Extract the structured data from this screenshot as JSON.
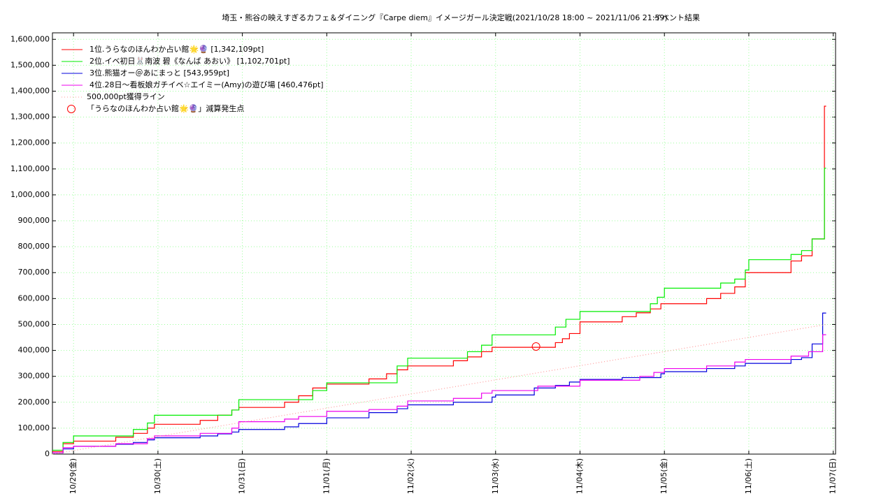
{
  "chart_data": {
    "type": "line",
    "title": "埼玉・熊谷の映えすぎるカフェ＆ダイニング『Carpe diem』イメージガール決定戦(2021/10/28 18:00 ~ 2021/11/06 21:59)",
    "subtitle": "イベント結果",
    "xlim": [
      "2021-10-28T18:00",
      "2021-11-07T00:40"
    ],
    "xticks": [
      {
        "value": "2021-10-29T00:00",
        "label": "10/29(金)"
      },
      {
        "value": "2021-10-30T00:00",
        "label": "10/30(土)"
      },
      {
        "value": "2021-10-31T00:00",
        "label": "10/31(日)"
      },
      {
        "value": "2021-11-01T00:00",
        "label": "11/01(月)"
      },
      {
        "value": "2021-11-02T00:00",
        "label": "11/02(火)"
      },
      {
        "value": "2021-11-03T00:00",
        "label": "11/03(水)"
      },
      {
        "value": "2021-11-04T00:00",
        "label": "11/04(木)"
      },
      {
        "value": "2021-11-05T00:00",
        "label": "11/05(金)"
      },
      {
        "value": "2021-11-06T00:00",
        "label": "11/06(土)"
      },
      {
        "value": "2021-11-07T00:00",
        "label": "11/07(日)"
      }
    ],
    "ylim": [
      0,
      1625000
    ],
    "yticks": [
      0,
      {
        "value": 100000,
        "label": "100,000"
      },
      {
        "value": 200000,
        "label": "200,000"
      },
      {
        "value": 300000,
        "label": "300,000"
      },
      {
        "value": 400000,
        "label": "400,000"
      },
      {
        "value": 500000,
        "label": "500,000"
      },
      {
        "value": 600000,
        "label": "600,000"
      },
      {
        "value": 700000,
        "label": "700,000"
      },
      {
        "value": 800000,
        "label": "800,000"
      },
      {
        "value": 900000,
        "label": "900,000"
      },
      {
        "value": 1000000,
        "label": "1,000,000"
      },
      {
        "value": 1100000,
        "label": "1,100,000"
      },
      {
        "value": 1200000,
        "label": "1,200,000"
      },
      {
        "value": 1300000,
        "label": "1,300,000"
      },
      {
        "value": 1400000,
        "label": "1,400,000"
      },
      {
        "value": 1500000,
        "label": "1,500,000"
      },
      {
        "value": 1600000,
        "label": "1,600,000"
      }
    ],
    "grid": true,
    "legend": "upper left",
    "series": [
      {
        "name": "1位.うらなのほんわか占い館🌟🔮 [1,342,109pt]",
        "color": "#ff0000",
        "drawstyle": "steps-post",
        "x": [
          "2021-10-28T18:00",
          "2021-10-28T21:00",
          "2021-10-29T00:00",
          "2021-10-29T12:00",
          "2021-10-29T17:00",
          "2021-10-29T21:00",
          "2021-10-29T23:00",
          "2021-10-30T12:00",
          "2021-10-30T17:00",
          "2021-10-30T21:00",
          "2021-10-30T23:00",
          "2021-10-31T12:00",
          "2021-10-31T16:00",
          "2021-10-31T20:00",
          "2021-11-01T00:00",
          "2021-11-01T12:00",
          "2021-11-01T17:00",
          "2021-11-01T20:00",
          "2021-11-01T23:00",
          "2021-11-02T12:00",
          "2021-11-02T16:00",
          "2021-11-02T20:00",
          "2021-11-02T23:00",
          "2021-11-03T17:00",
          "2021-11-03T19:00",
          "2021-11-03T21:00",
          "2021-11-04T00:00",
          "2021-11-04T12:00",
          "2021-11-04T16:00",
          "2021-11-04T20:00",
          "2021-11-04T23:00",
          "2021-11-05T12:00",
          "2021-11-05T16:00",
          "2021-11-05T20:00",
          "2021-11-05T23:00",
          "2021-11-06T12:00",
          "2021-11-06T15:00",
          "2021-11-06T18:00",
          "2021-11-06T21:30",
          "2021-11-06T21:59"
        ],
        "values": [
          10000,
          40000,
          50000,
          65000,
          80000,
          100000,
          115000,
          130000,
          150000,
          170000,
          180000,
          200000,
          225000,
          255000,
          270000,
          290000,
          310000,
          325000,
          340000,
          360000,
          375000,
          395000,
          412000,
          430000,
          445000,
          465000,
          510000,
          530000,
          545000,
          560000,
          580000,
          600000,
          620000,
          645000,
          700000,
          745000,
          765000,
          830000,
          1342109,
          1342109
        ]
      },
      {
        "name": "2位.イベ初日🐰南波 碧《なんば あおい》 [1,102,701pt]",
        "color": "#00ee00",
        "drawstyle": "steps-post",
        "x": [
          "2021-10-28T18:00",
          "2021-10-28T21:00",
          "2021-10-29T00:00",
          "2021-10-29T17:00",
          "2021-10-29T21:00",
          "2021-10-29T23:00",
          "2021-10-30T21:00",
          "2021-10-30T23:00",
          "2021-10-31T20:00",
          "2021-11-01T00:00",
          "2021-11-01T20:00",
          "2021-11-01T23:00",
          "2021-11-02T16:00",
          "2021-11-02T20:00",
          "2021-11-02T23:00",
          "2021-11-03T17:00",
          "2021-11-03T20:00",
          "2021-11-04T00:00",
          "2021-11-04T20:00",
          "2021-11-04T22:00",
          "2021-11-05T00:00",
          "2021-11-05T16:00",
          "2021-11-05T20:00",
          "2021-11-05T23:00",
          "2021-11-06T00:00",
          "2021-11-06T12:00",
          "2021-11-06T15:00",
          "2021-11-06T18:00",
          "2021-11-06T21:30",
          "2021-11-06T21:59"
        ],
        "values": [
          15000,
          45000,
          70000,
          95000,
          120000,
          150000,
          170000,
          210000,
          245000,
          275000,
          340000,
          370000,
          395000,
          420000,
          460000,
          490000,
          520000,
          550000,
          580000,
          605000,
          640000,
          660000,
          675000,
          710000,
          750000,
          770000,
          785000,
          830000,
          1102701,
          1102701
        ]
      },
      {
        "name": "3位.熊猫オー＠あにまっと [543,959pt]",
        "color": "#0000dd",
        "drawstyle": "steps-post",
        "x": [
          "2021-10-28T18:00",
          "2021-10-28T21:00",
          "2021-10-29T00:00",
          "2021-10-29T12:00",
          "2021-10-29T17:00",
          "2021-10-29T21:00",
          "2021-10-29T23:00",
          "2021-10-30T12:00",
          "2021-10-30T17:00",
          "2021-10-30T21:00",
          "2021-10-30T23:00",
          "2021-10-31T12:00",
          "2021-10-31T16:00",
          "2021-11-01T00:00",
          "2021-11-01T12:00",
          "2021-11-01T20:00",
          "2021-11-01T23:00",
          "2021-11-02T12:00",
          "2021-11-02T23:00",
          "2021-11-03T00:00",
          "2021-11-03T11:00",
          "2021-11-03T17:00",
          "2021-11-03T21:00",
          "2021-11-04T00:00",
          "2021-11-04T12:00",
          "2021-11-04T23:00",
          "2021-11-05T00:00",
          "2021-11-05T12:00",
          "2021-11-05T20:00",
          "2021-11-05T23:00",
          "2021-11-06T12:00",
          "2021-11-06T15:00",
          "2021-11-06T18:00",
          "2021-11-06T21:00",
          "2021-11-06T21:59"
        ],
        "values": [
          5000,
          20000,
          30000,
          38000,
          45000,
          55000,
          63000,
          70000,
          78000,
          85000,
          95000,
          105000,
          118000,
          140000,
          160000,
          175000,
          190000,
          200000,
          220000,
          228000,
          255000,
          265000,
          278000,
          288000,
          295000,
          310000,
          318000,
          330000,
          340000,
          350000,
          365000,
          372000,
          425000,
          543959,
          543959
        ]
      },
      {
        "name": "4位.28日〜看板娘ガチイベ☆エイミー(Amy)の遊び場 [460,476pt]",
        "color": "#ee00ee",
        "drawstyle": "steps-post",
        "x": [
          "2021-10-28T18:00",
          "2021-10-28T21:00",
          "2021-10-29T00:00",
          "2021-10-29T12:00",
          "2021-10-29T21:00",
          "2021-10-29T23:00",
          "2021-10-30T12:00",
          "2021-10-30T21:00",
          "2021-10-30T23:00",
          "2021-10-31T12:00",
          "2021-10-31T16:00",
          "2021-11-01T00:00",
          "2021-11-01T12:00",
          "2021-11-01T20:00",
          "2021-11-01T23:00",
          "2021-11-02T12:00",
          "2021-11-02T20:00",
          "2021-11-02T23:00",
          "2021-11-03T12:00",
          "2021-11-04T00:00",
          "2021-11-04T17:00",
          "2021-11-04T21:00",
          "2021-11-05T00:00",
          "2021-11-05T12:00",
          "2021-11-05T20:00",
          "2021-11-05T23:00",
          "2021-11-06T12:00",
          "2021-11-06T17:00",
          "2021-11-06T21:00",
          "2021-11-06T21:59"
        ],
        "values": [
          5000,
          25000,
          30000,
          40000,
          60000,
          70000,
          80000,
          100000,
          125000,
          135000,
          145000,
          165000,
          172000,
          185000,
          205000,
          215000,
          235000,
          245000,
          262000,
          285000,
          300000,
          315000,
          330000,
          340000,
          355000,
          365000,
          378000,
          395000,
          460476,
          460476
        ]
      },
      {
        "name": "500,000pt獲得ライン",
        "color": "#ff9999",
        "drawstyle": "dotted",
        "x": [
          "2021-10-28T18:00",
          "2021-11-06T21:59"
        ],
        "values": [
          0,
          500000
        ]
      },
      {
        "name": "「うらなのほんわか占い館🌟🔮」減算発生点",
        "color": "#ff0000",
        "drawstyle": "marker",
        "x": [
          "2021-11-03T11:30"
        ],
        "values": [
          415000
        ]
      }
    ]
  }
}
